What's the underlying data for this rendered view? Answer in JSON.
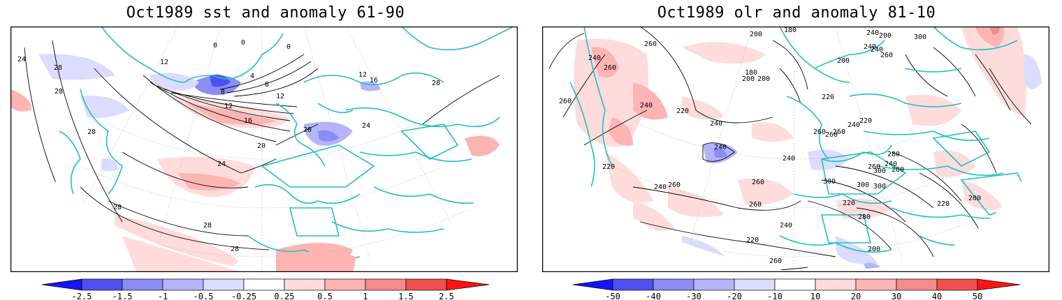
{
  "panels": [
    {
      "title": "Oct1989 sst and anomaly 61-90",
      "contour_labels": [
        "24",
        "28",
        "28",
        "28",
        "0",
        "0",
        "0",
        "12",
        "4",
        "8",
        "8",
        "12",
        "16",
        "12",
        "12",
        "16",
        "20",
        "20",
        "24",
        "24",
        "28",
        "28",
        "28",
        "28"
      ],
      "colorbar_ticks": [
        "-2.5",
        "-1.5",
        "-1",
        "-0.5",
        "-0.25",
        "0.25",
        "0.5",
        "1",
        "1.5",
        "2.5"
      ]
    },
    {
      "title": "Oct1989 olr and anomaly 81-10",
      "contour_labels": [
        "200",
        "180",
        "240",
        "200",
        "300",
        "240",
        "260",
        "240",
        "260",
        "180",
        "200",
        "200",
        "260",
        "240",
        "200",
        "220",
        "240",
        "220",
        "240",
        "260",
        "260",
        "220",
        "240",
        "260",
        "240",
        "260",
        "280",
        "260",
        "280",
        "300",
        "240",
        "260",
        "300",
        "300",
        "220",
        "260",
        "240",
        "200",
        "300",
        "220",
        "280",
        "240",
        "260",
        "220",
        "240",
        "220",
        "260",
        "200"
      ],
      "colorbar_ticks": [
        "-50",
        "-40",
        "-30",
        "-20",
        "-10",
        "10",
        "20",
        "30",
        "40",
        "50"
      ]
    }
  ],
  "colors": {
    "coastline": "#20c0c0",
    "neg_strong": "#1414ff",
    "neg_2": "#5050f0",
    "neg_3": "#8c8cf5",
    "neg_4": "#b4b4fa",
    "neg_5": "#dcdcff",
    "pos_5": "#ffdcdc",
    "pos_4": "#ffb4b4",
    "pos_3": "#f58c8c",
    "pos_2": "#f05050",
    "pos_strong": "#ff1414"
  }
}
